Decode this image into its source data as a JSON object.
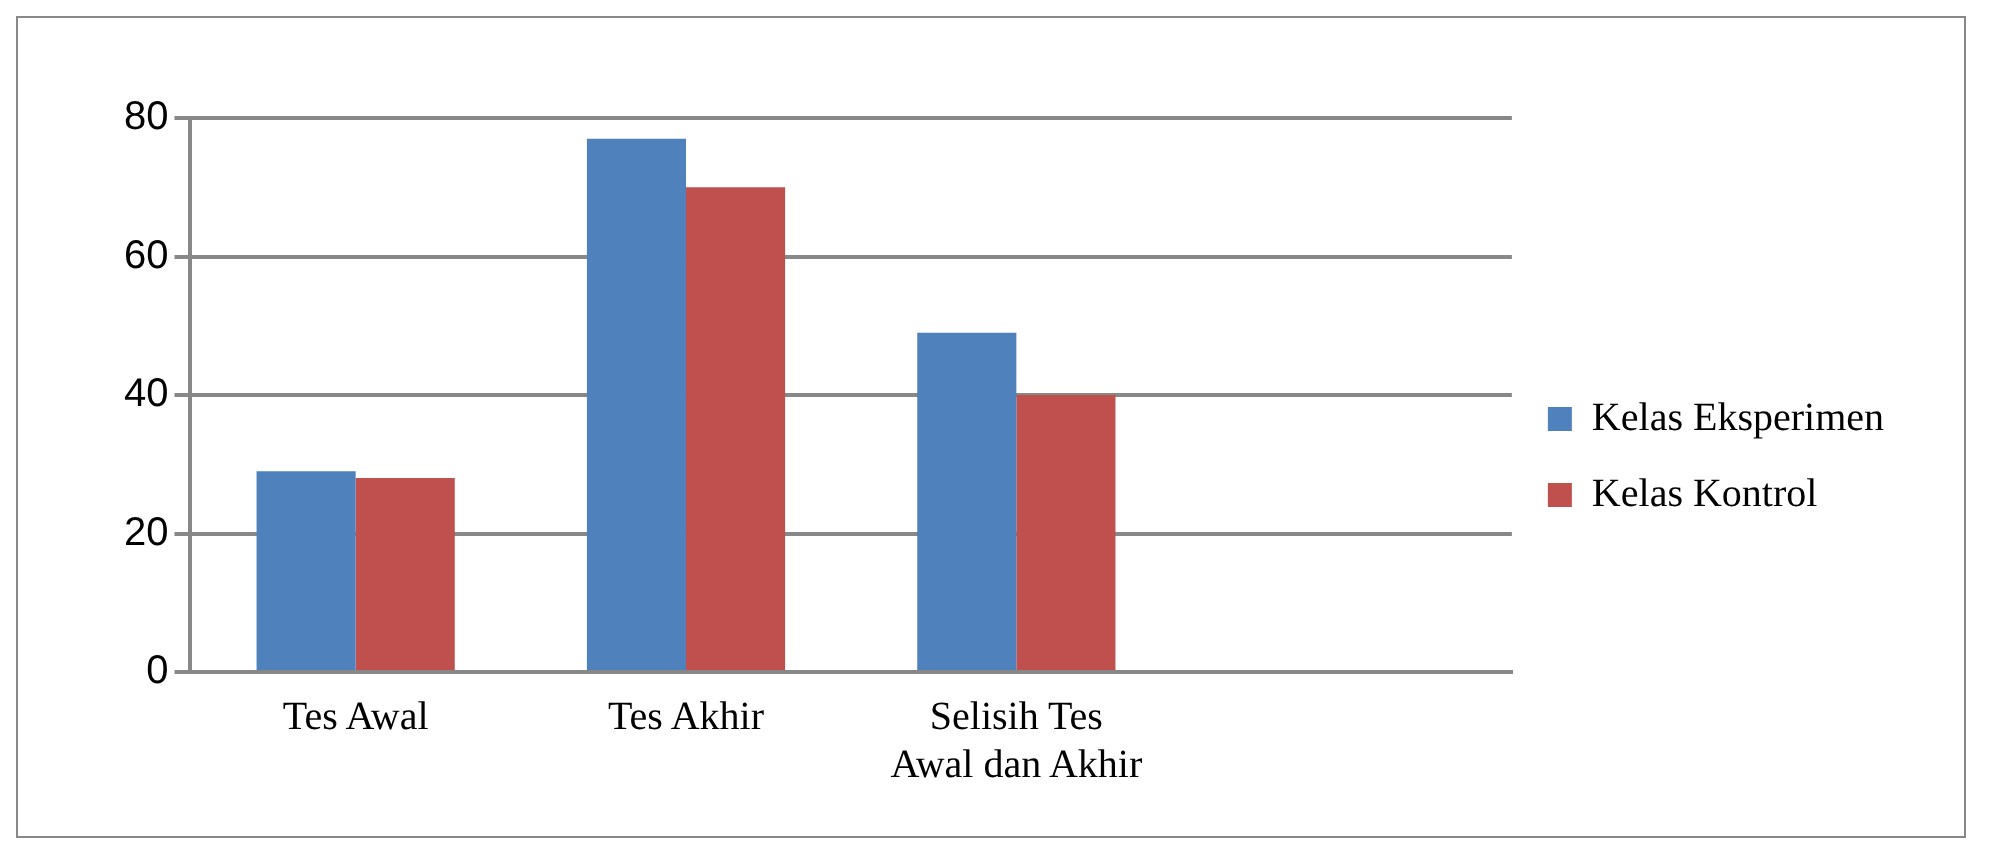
{
  "chart_data": {
    "type": "bar",
    "categories": [
      "Tes Awal",
      "Tes Akhir",
      "Selisih Tes Awal dan Akhir",
      null
    ],
    "series": [
      {
        "name": "Kelas Eksperimen",
        "color": "#4f81bd",
        "values": [
          29,
          77,
          49,
          null
        ]
      },
      {
        "name": "Kelas Kontrol",
        "color": "#c0504d",
        "values": [
          28,
          70,
          40,
          null
        ]
      }
    ],
    "ylim": [
      0,
      80
    ],
    "yticks": [
      0,
      20,
      40,
      60,
      80
    ],
    "grid": "y",
    "legend": "right"
  }
}
